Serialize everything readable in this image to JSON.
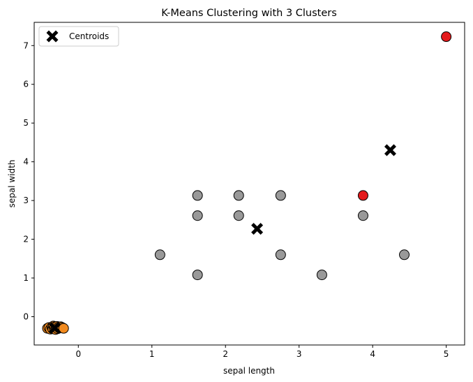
{
  "chart_data": {
    "type": "scatter",
    "title": "K-Means Clustering with 3 Clusters",
    "xlabel": "sepal length",
    "ylabel": "sepal width",
    "xlim": [
      -0.6,
      5.25
    ],
    "ylim": [
      -0.73,
      7.6
    ],
    "xticks": [
      0,
      1,
      2,
      3,
      4,
      5
    ],
    "yticks": [
      0,
      1,
      2,
      3,
      4,
      5,
      6,
      7
    ],
    "grid": false,
    "legend": {
      "placement": "top-left",
      "entries": [
        "Centroids"
      ]
    },
    "colors": {
      "cluster_0": "#f28a1e",
      "cluster_1": "#999999",
      "cluster_2": "#e41a1c",
      "centroid": "#000000",
      "edge": "#000000"
    },
    "clusters": [
      {
        "cluster": 0,
        "points": [
          [
            -0.42,
            -0.3
          ],
          [
            -0.4,
            -0.28
          ],
          [
            -0.38,
            -0.32
          ],
          [
            -0.36,
            -0.27
          ],
          [
            -0.35,
            -0.31
          ],
          [
            -0.34,
            -0.24
          ],
          [
            -0.33,
            -0.3
          ],
          [
            -0.32,
            -0.26
          ],
          [
            -0.31,
            -0.33
          ],
          [
            -0.3,
            -0.28
          ],
          [
            -0.29,
            -0.25
          ],
          [
            -0.28,
            -0.31
          ],
          [
            -0.27,
            -0.27
          ],
          [
            -0.26,
            -0.29
          ],
          [
            -0.24,
            -0.26
          ],
          [
            -0.22,
            -0.28
          ],
          [
            -0.2,
            -0.3
          ]
        ]
      },
      {
        "cluster": 1,
        "points": [
          [
            1.11,
            1.6
          ],
          [
            1.62,
            3.13
          ],
          [
            1.62,
            2.61
          ],
          [
            1.62,
            1.08
          ],
          [
            2.18,
            3.13
          ],
          [
            2.18,
            2.61
          ],
          [
            2.75,
            3.13
          ],
          [
            2.75,
            1.6
          ],
          [
            3.31,
            1.08
          ],
          [
            3.87,
            2.61
          ],
          [
            4.43,
            1.6
          ]
        ]
      },
      {
        "cluster": 2,
        "points": [
          [
            3.87,
            3.13
          ],
          [
            5.0,
            7.23
          ]
        ]
      }
    ],
    "centroids": [
      [
        -0.32,
        -0.29
      ],
      [
        2.43,
        2.27
      ],
      [
        4.24,
        4.3
      ]
    ]
  }
}
